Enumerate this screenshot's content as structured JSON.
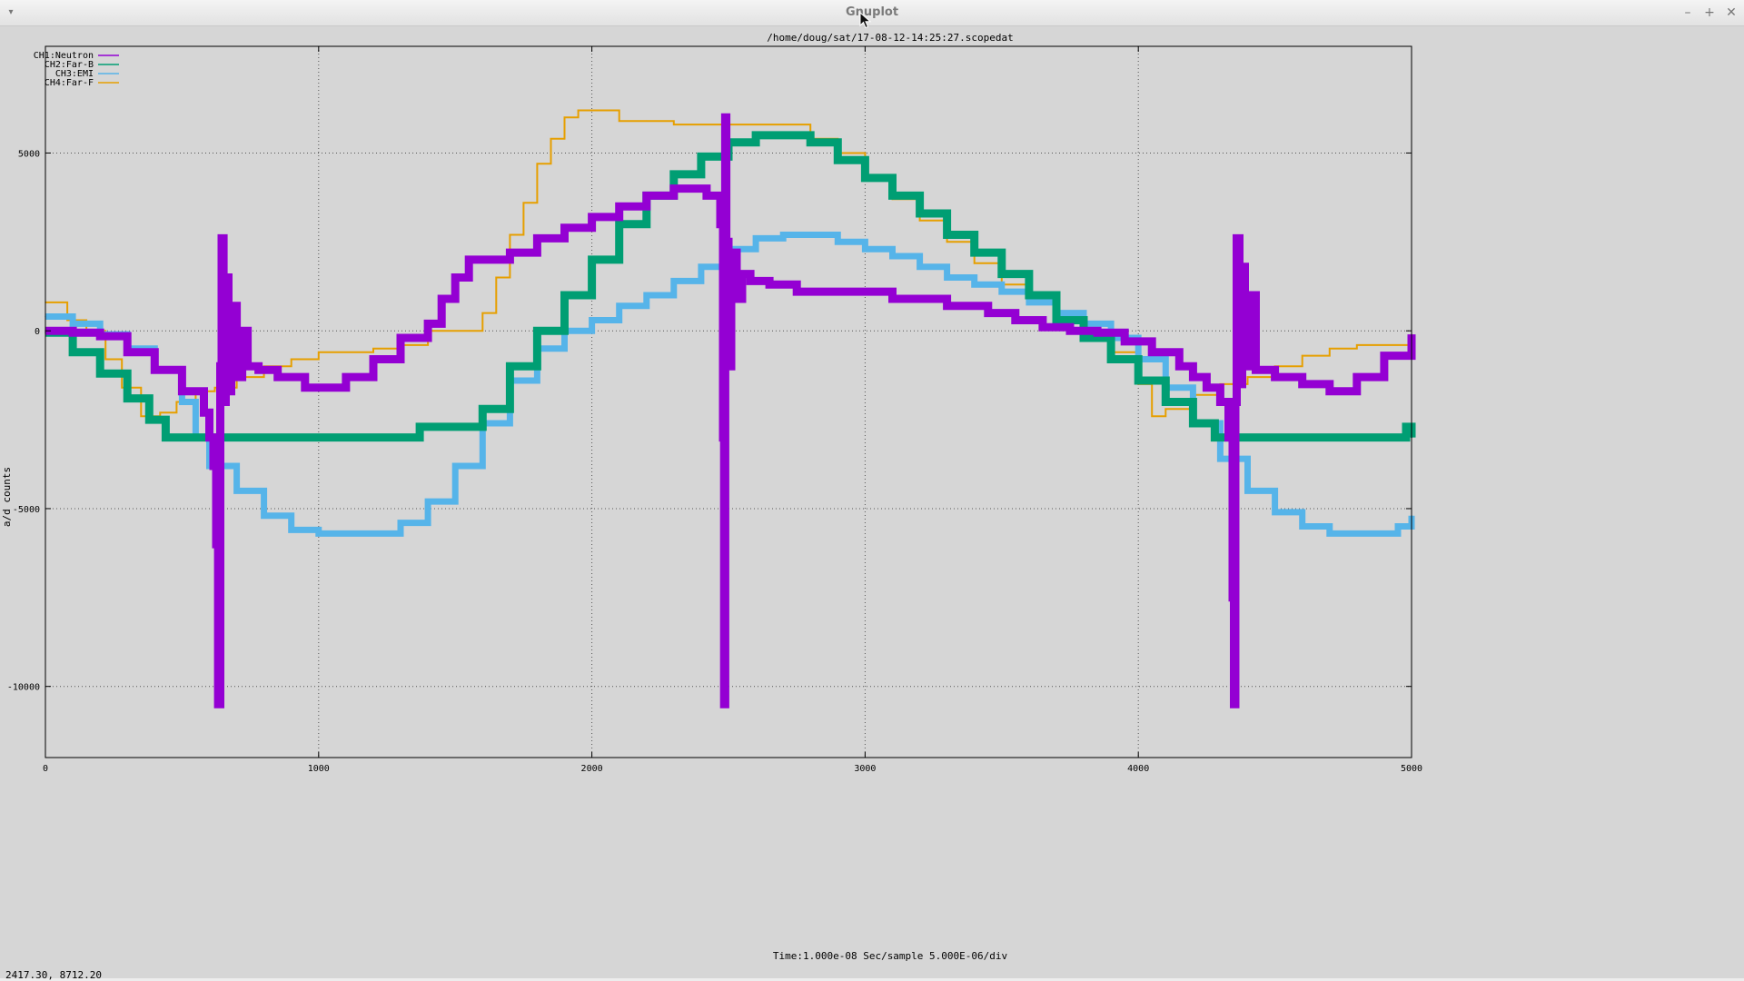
{
  "window": {
    "title": "Gnuplot",
    "menu_icon": "▾",
    "minimize_icon": "–",
    "maximize_icon": "+",
    "close_icon": "✕"
  },
  "status": {
    "readout": "2417.30,  8712.20"
  },
  "colors": {
    "background": "#d6d6d6",
    "grid": "#555555",
    "CH1": "#9400d3",
    "CH2": "#009e73",
    "CH3": "#56b4e9",
    "CH4": "#e69f00"
  },
  "chart_data": {
    "type": "line",
    "title": "/home/doug/sat/17-08-12-14:25:27.scopedat",
    "xlabel": "Time:1.000e-08 Sec/sample 5.000E-06/div",
    "ylabel": "a/d counts",
    "xlim": [
      0,
      5000
    ],
    "ylim": [
      -12000,
      8000
    ],
    "x_ticks": [
      0,
      1000,
      2000,
      3000,
      4000,
      5000
    ],
    "y_ticks": [
      5000,
      0,
      -5000,
      -10000
    ],
    "grid": true,
    "legend_position": "top-left",
    "series": [
      {
        "name": "CH1:Neutron",
        "style": "steps",
        "points": [
          [
            0,
            0
          ],
          [
            100,
            -50
          ],
          [
            200,
            -150
          ],
          [
            300,
            -600
          ],
          [
            400,
            -1100
          ],
          [
            500,
            -1700
          ],
          [
            580,
            -2300
          ],
          [
            600,
            -3000
          ],
          [
            615,
            -3800
          ],
          [
            625,
            -6000
          ],
          [
            632,
            -10500
          ],
          [
            640,
            -1000
          ],
          [
            645,
            2600
          ],
          [
            652,
            -2000
          ],
          [
            660,
            1500
          ],
          [
            670,
            -1700
          ],
          [
            680,
            700
          ],
          [
            700,
            -1300
          ],
          [
            720,
            0
          ],
          [
            740,
            -1000
          ],
          [
            780,
            -1100
          ],
          [
            850,
            -1300
          ],
          [
            950,
            -1600
          ],
          [
            1050,
            -1600
          ],
          [
            1100,
            -1300
          ],
          [
            1200,
            -800
          ],
          [
            1300,
            -200
          ],
          [
            1400,
            200
          ],
          [
            1450,
            900
          ],
          [
            1500,
            1500
          ],
          [
            1550,
            2000
          ],
          [
            1700,
            2200
          ],
          [
            1800,
            2600
          ],
          [
            1900,
            2900
          ],
          [
            2000,
            3200
          ],
          [
            2100,
            3500
          ],
          [
            2200,
            3800
          ],
          [
            2300,
            4000
          ],
          [
            2350,
            4000
          ],
          [
            2420,
            3800
          ],
          [
            2470,
            3000
          ],
          [
            2480,
            -3000
          ],
          [
            2484,
            -10500
          ],
          [
            2488,
            6000
          ],
          [
            2492,
            2500
          ],
          [
            2500,
            -1000
          ],
          [
            2510,
            2200
          ],
          [
            2530,
            900
          ],
          [
            2550,
            1600
          ],
          [
            2580,
            1400
          ],
          [
            2650,
            1300
          ],
          [
            2750,
            1100
          ],
          [
            3000,
            1100
          ],
          [
            3100,
            900
          ],
          [
            3300,
            700
          ],
          [
            3450,
            500
          ],
          [
            3550,
            300
          ],
          [
            3650,
            100
          ],
          [
            3750,
            0
          ],
          [
            3850,
            -50
          ],
          [
            3950,
            -300
          ],
          [
            4050,
            -600
          ],
          [
            4150,
            -1000
          ],
          [
            4200,
            -1300
          ],
          [
            4250,
            -1600
          ],
          [
            4300,
            -2000
          ],
          [
            4330,
            -3000
          ],
          [
            4345,
            -7500
          ],
          [
            4350,
            -10500
          ],
          [
            4355,
            -2000
          ],
          [
            4360,
            2600
          ],
          [
            4370,
            -1500
          ],
          [
            4380,
            1800
          ],
          [
            4390,
            -1000
          ],
          [
            4410,
            1000
          ],
          [
            4430,
            -1100
          ],
          [
            4500,
            -1300
          ],
          [
            4600,
            -1500
          ],
          [
            4700,
            -1700
          ],
          [
            4800,
            -1300
          ],
          [
            4900,
            -700
          ],
          [
            5000,
            -100
          ]
        ]
      },
      {
        "name": "CH2:Far-B",
        "style": "steps",
        "points": [
          [
            0,
            -50
          ],
          [
            100,
            -600
          ],
          [
            200,
            -1200
          ],
          [
            300,
            -1900
          ],
          [
            380,
            -2500
          ],
          [
            440,
            -3000
          ],
          [
            800,
            -3000
          ],
          [
            1350,
            -3000
          ],
          [
            1370,
            -2700
          ],
          [
            1550,
            -2700
          ],
          [
            1600,
            -2200
          ],
          [
            1700,
            -1000
          ],
          [
            1800,
            0
          ],
          [
            1900,
            1000
          ],
          [
            2000,
            2000
          ],
          [
            2100,
            3000
          ],
          [
            2200,
            3800
          ],
          [
            2300,
            4400
          ],
          [
            2400,
            4900
          ],
          [
            2500,
            5300
          ],
          [
            2600,
            5500
          ],
          [
            2700,
            5500
          ],
          [
            2800,
            5300
          ],
          [
            2900,
            4800
          ],
          [
            3000,
            4300
          ],
          [
            3100,
            3800
          ],
          [
            3200,
            3300
          ],
          [
            3300,
            2700
          ],
          [
            3400,
            2200
          ],
          [
            3500,
            1600
          ],
          [
            3600,
            1000
          ],
          [
            3700,
            300
          ],
          [
            3800,
            -200
          ],
          [
            3900,
            -800
          ],
          [
            4000,
            -1400
          ],
          [
            4100,
            -2000
          ],
          [
            4200,
            -2600
          ],
          [
            4280,
            -3000
          ],
          [
            4950,
            -3000
          ],
          [
            4980,
            -2700
          ],
          [
            5000,
            -3000
          ]
        ]
      },
      {
        "name": "CH3:EMI",
        "style": "steps",
        "points": [
          [
            0,
            400
          ],
          [
            100,
            200
          ],
          [
            200,
            -100
          ],
          [
            300,
            -500
          ],
          [
            400,
            -1100
          ],
          [
            500,
            -2000
          ],
          [
            550,
            -3000
          ],
          [
            600,
            -3800
          ],
          [
            700,
            -4500
          ],
          [
            800,
            -5200
          ],
          [
            900,
            -5600
          ],
          [
            1000,
            -5700
          ],
          [
            1200,
            -5700
          ],
          [
            1300,
            -5400
          ],
          [
            1400,
            -4800
          ],
          [
            1500,
            -3800
          ],
          [
            1600,
            -2600
          ],
          [
            1700,
            -1400
          ],
          [
            1800,
            -500
          ],
          [
            1900,
            0
          ],
          [
            2000,
            300
          ],
          [
            2100,
            700
          ],
          [
            2200,
            1000
          ],
          [
            2300,
            1400
          ],
          [
            2400,
            1800
          ],
          [
            2500,
            2300
          ],
          [
            2600,
            2600
          ],
          [
            2700,
            2700
          ],
          [
            2800,
            2700
          ],
          [
            2900,
            2500
          ],
          [
            3000,
            2300
          ],
          [
            3100,
            2100
          ],
          [
            3200,
            1800
          ],
          [
            3300,
            1500
          ],
          [
            3400,
            1300
          ],
          [
            3500,
            1100
          ],
          [
            3600,
            800
          ],
          [
            3700,
            500
          ],
          [
            3800,
            200
          ],
          [
            3900,
            -200
          ],
          [
            4000,
            -800
          ],
          [
            4100,
            -1600
          ],
          [
            4200,
            -2600
          ],
          [
            4300,
            -3600
          ],
          [
            4400,
            -4500
          ],
          [
            4500,
            -5100
          ],
          [
            4600,
            -5500
          ],
          [
            4700,
            -5700
          ],
          [
            4900,
            -5700
          ],
          [
            4950,
            -5500
          ],
          [
            5000,
            -5200
          ]
        ]
      },
      {
        "name": "CH4:Far-F",
        "style": "steps",
        "points": [
          [
            0,
            800
          ],
          [
            80,
            300
          ],
          [
            150,
            0
          ],
          [
            220,
            -800
          ],
          [
            280,
            -1600
          ],
          [
            350,
            -2400
          ],
          [
            420,
            -2300
          ],
          [
            480,
            -2000
          ],
          [
            550,
            -1700
          ],
          [
            620,
            -1600
          ],
          [
            700,
            -1300
          ],
          [
            800,
            -1000
          ],
          [
            900,
            -800
          ],
          [
            1000,
            -600
          ],
          [
            1200,
            -500
          ],
          [
            1300,
            -400
          ],
          [
            1400,
            0
          ],
          [
            1550,
            0
          ],
          [
            1600,
            500
          ],
          [
            1650,
            1500
          ],
          [
            1700,
            2700
          ],
          [
            1750,
            3600
          ],
          [
            1800,
            4700
          ],
          [
            1850,
            5400
          ],
          [
            1900,
            6000
          ],
          [
            1950,
            6200
          ],
          [
            2050,
            6200
          ],
          [
            2100,
            5900
          ],
          [
            2200,
            5900
          ],
          [
            2300,
            5800
          ],
          [
            2700,
            5800
          ],
          [
            2800,
            5400
          ],
          [
            2900,
            5000
          ],
          [
            3000,
            4300
          ],
          [
            3100,
            3700
          ],
          [
            3200,
            3100
          ],
          [
            3300,
            2500
          ],
          [
            3400,
            1900
          ],
          [
            3500,
            1300
          ],
          [
            3600,
            800
          ],
          [
            3700,
            300
          ],
          [
            3800,
            -100
          ],
          [
            3900,
            -600
          ],
          [
            4000,
            -1500
          ],
          [
            4050,
            -2400
          ],
          [
            4100,
            -2200
          ],
          [
            4200,
            -1800
          ],
          [
            4300,
            -1500
          ],
          [
            4400,
            -1300
          ],
          [
            4500,
            -1000
          ],
          [
            4600,
            -700
          ],
          [
            4700,
            -500
          ],
          [
            4800,
            -400
          ],
          [
            5000,
            -400
          ]
        ]
      }
    ]
  }
}
